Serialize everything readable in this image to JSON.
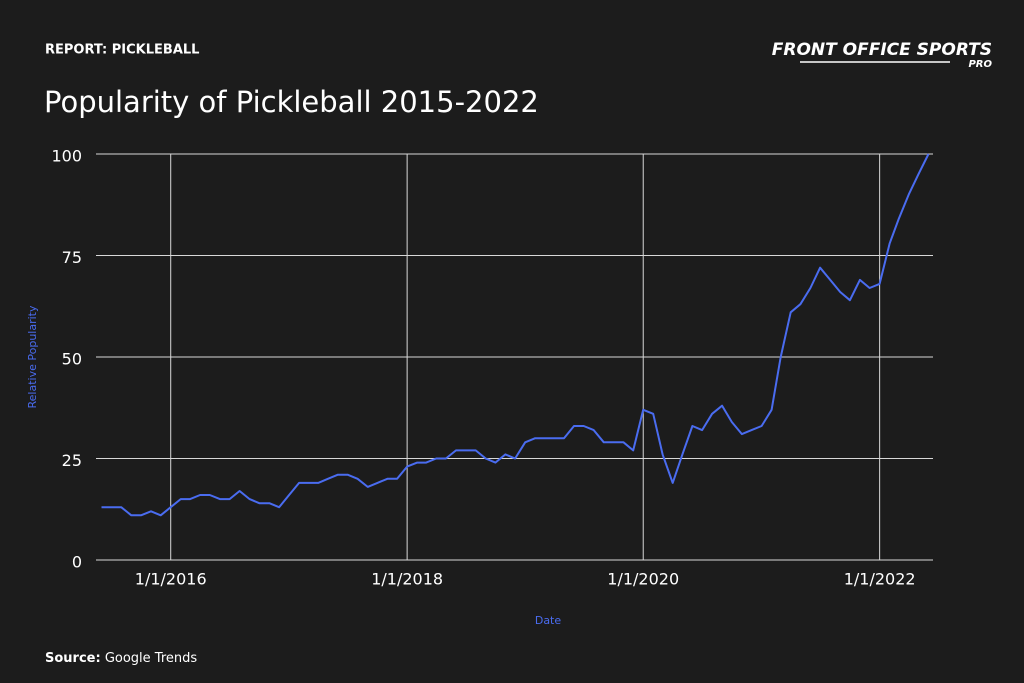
{
  "header": {
    "report": "REPORT: PICKLEBALL",
    "brand": "FRONT OFFICE SPORTS",
    "brand_sub": "PRO"
  },
  "chart_data": {
    "type": "line",
    "title": "Popularity of Pickleball 2015-2022",
    "x_label": "Date",
    "y_label": "Relative Popularity",
    "x": [
      "6/1/2015",
      "7/1/2015",
      "8/1/2015",
      "9/1/2015",
      "10/1/2015",
      "11/1/2015",
      "12/1/2015",
      "1/1/2016",
      "2/1/2016",
      "3/1/2016",
      "4/1/2016",
      "5/1/2016",
      "6/1/2016",
      "7/1/2016",
      "8/1/2016",
      "9/1/2016",
      "10/1/2016",
      "11/1/2016",
      "12/1/2016",
      "1/1/2017",
      "2/1/2017",
      "3/1/2017",
      "4/1/2017",
      "5/1/2017",
      "6/1/2017",
      "7/1/2017",
      "8/1/2017",
      "9/1/2017",
      "10/1/2017",
      "11/1/2017",
      "12/1/2017",
      "1/1/2018",
      "2/1/2018",
      "3/1/2018",
      "4/1/2018",
      "5/1/2018",
      "6/1/2018",
      "7/1/2018",
      "8/1/2018",
      "9/1/2018",
      "10/1/2018",
      "11/1/2018",
      "12/1/2018",
      "1/1/2019",
      "2/1/2019",
      "3/1/2019",
      "4/1/2019",
      "5/1/2019",
      "6/1/2019",
      "7/1/2019",
      "8/1/2019",
      "9/1/2019",
      "10/1/2019",
      "11/1/2019",
      "12/1/2019",
      "1/1/2020",
      "2/1/2020",
      "3/1/2020",
      "4/1/2020",
      "5/1/2020",
      "6/1/2020",
      "7/1/2020",
      "8/1/2020",
      "9/1/2020",
      "10/1/2020",
      "11/1/2020",
      "12/1/2020",
      "1/1/2021",
      "2/1/2021",
      "3/1/2021",
      "4/1/2021",
      "5/1/2021",
      "6/1/2021",
      "7/1/2021",
      "8/1/2021",
      "9/1/2021",
      "10/1/2021",
      "11/1/2021",
      "12/1/2021",
      "1/1/2022",
      "2/1/2022",
      "3/1/2022",
      "4/1/2022",
      "5/1/2022",
      "6/1/2022"
    ],
    "series": [
      {
        "name": "Pickleball",
        "color": "#4a6cf0",
        "values": [
          13,
          13,
          13,
          11,
          11,
          12,
          11,
          13,
          15,
          15,
          16,
          16,
          15,
          15,
          17,
          15,
          14,
          14,
          13,
          16,
          19,
          19,
          19,
          20,
          21,
          21,
          20,
          18,
          19,
          20,
          20,
          23,
          24,
          24,
          25,
          25,
          27,
          27,
          27,
          25,
          24,
          26,
          25,
          29,
          30,
          30,
          30,
          30,
          33,
          33,
          32,
          29,
          29,
          29,
          27,
          37,
          36,
          26,
          19,
          26,
          33,
          32,
          36,
          38,
          34,
          31,
          32,
          33,
          37,
          50,
          61,
          63,
          67,
          72,
          69,
          66,
          64,
          69,
          67,
          68,
          78,
          84,
          90,
          95,
          100
        ]
      }
    ],
    "xlim": [
      "5/15/2015",
      "6/15/2022"
    ],
    "xticks": [
      "1/1/2016",
      "1/1/2018",
      "1/1/2020",
      "1/1/2022"
    ],
    "ylim": [
      0,
      100
    ],
    "yticks": [
      0,
      25,
      50,
      75,
      100
    ],
    "grid": true
  },
  "footer": {
    "source_label": "Source:",
    "source": "Google Trends"
  }
}
